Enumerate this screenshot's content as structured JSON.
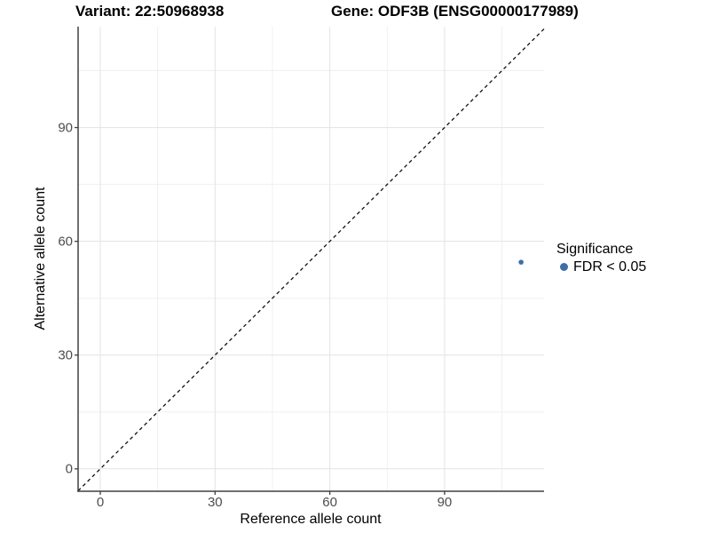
{
  "chart_data": {
    "type": "scatter",
    "title_left": "Variant: 22:50968938",
    "title_right": "Gene: ODF3B (ENSG00000177989)",
    "xlabel": "Reference allele count",
    "ylabel": "Alternative allele count",
    "x_range": [
      -5.8,
      116.0
    ],
    "y_range": [
      -5.9,
      116.6
    ],
    "x_ticks_major": [
      0,
      30,
      60,
      90
    ],
    "x_ticks_minor": [
      15,
      45,
      75,
      105
    ],
    "y_ticks_major": [
      0,
      30,
      60,
      90
    ],
    "y_ticks_minor": [
      15,
      45,
      75,
      105
    ],
    "grid": true,
    "reference_line": {
      "type": "identity",
      "style": "dashed",
      "color": "#111111"
    },
    "series": [
      {
        "name": "FDR < 0.05",
        "color": "#3d6ea8",
        "points": [
          {
            "x": 110,
            "y": 54.5
          }
        ]
      }
    ],
    "legend": {
      "title": "Significance",
      "position": "right",
      "entries": [
        {
          "label": "FDR < 0.05",
          "color": "#3d6ea8"
        }
      ]
    }
  },
  "colors": {
    "background": "#ffffff",
    "point": "#3d6ea8",
    "axis_line": "#404040",
    "tick_label": "#4d4d4d"
  }
}
